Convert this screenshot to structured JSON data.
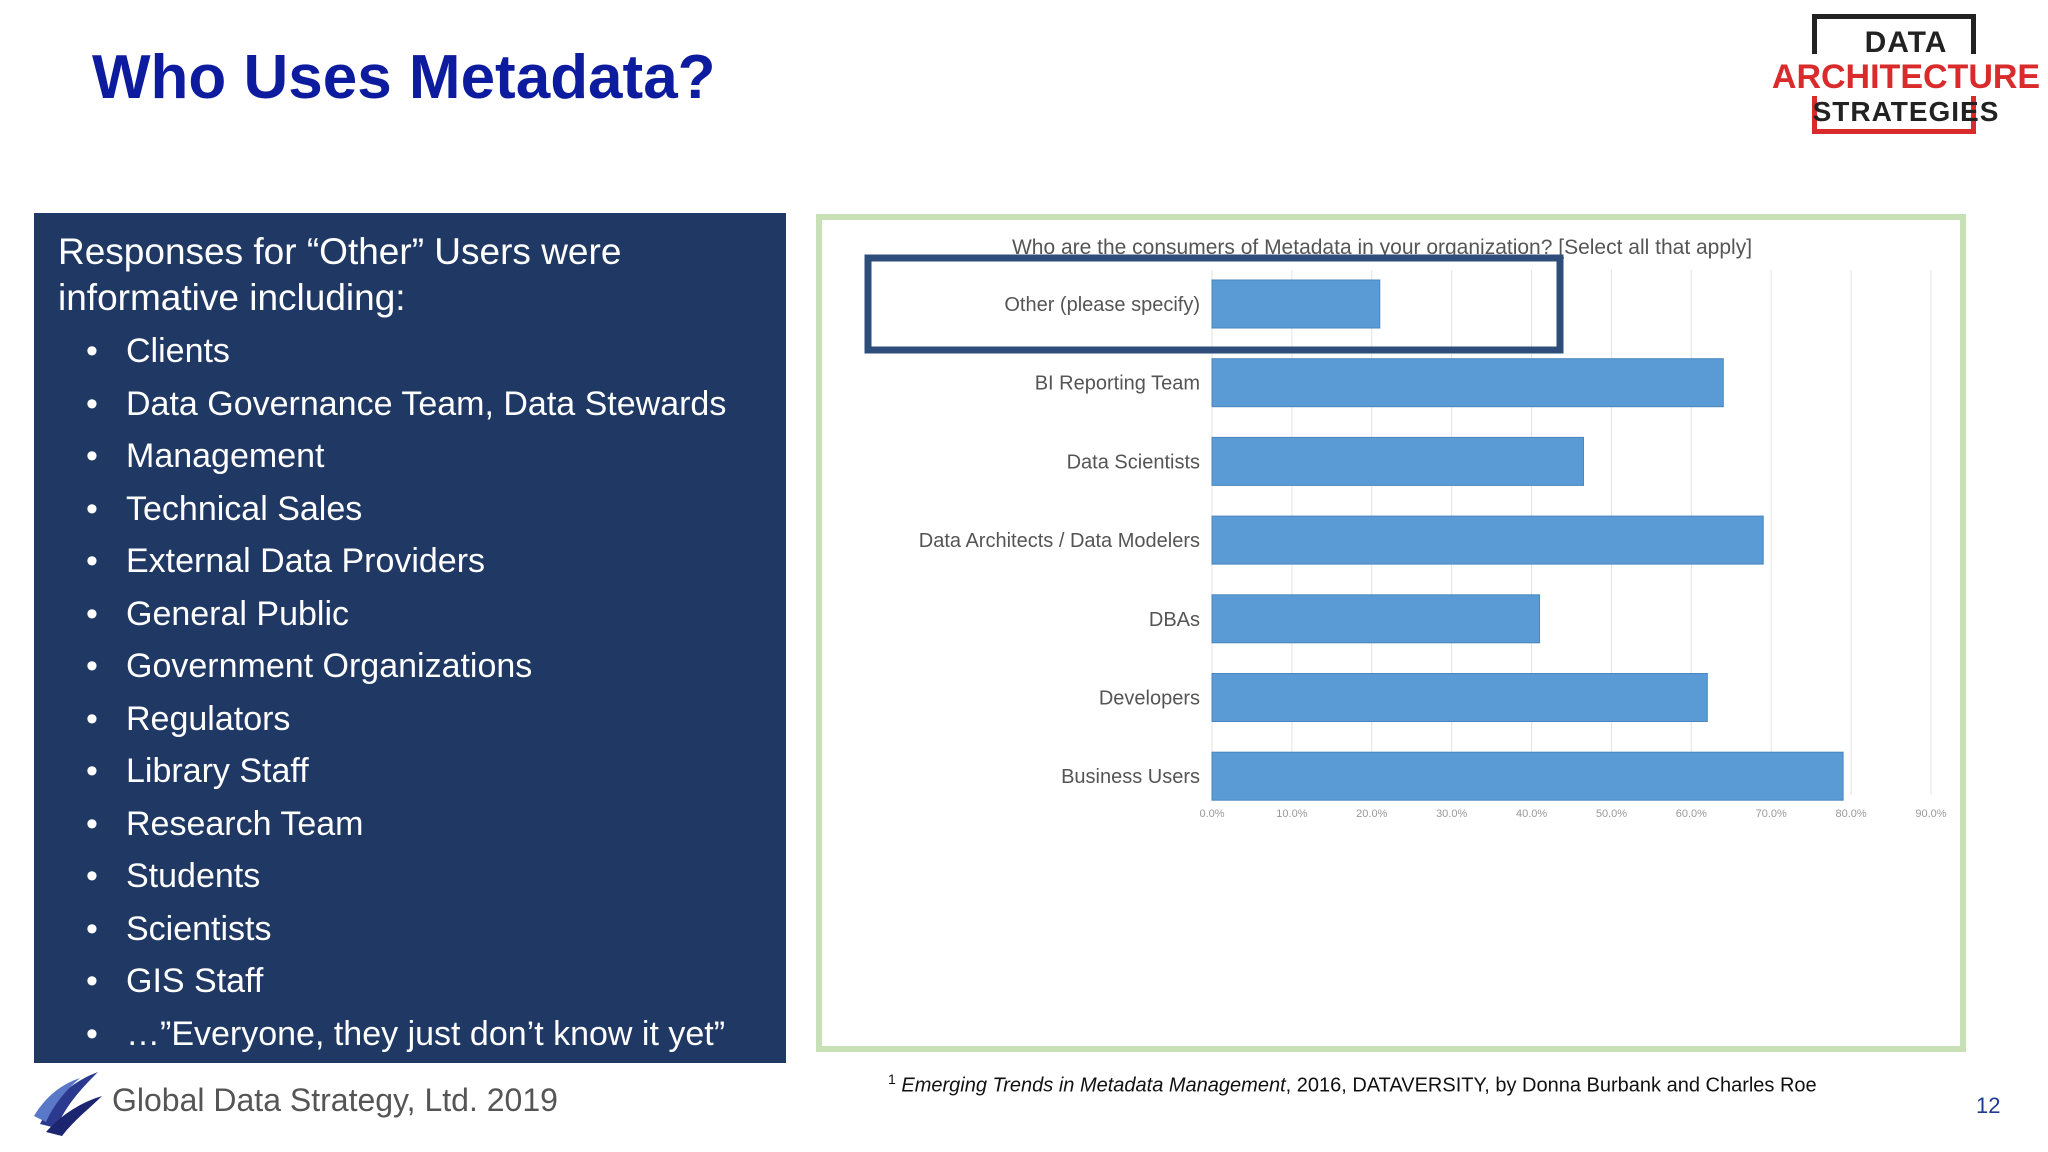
{
  "title": "Who Uses Metadata?",
  "logo": {
    "line1": "DATA",
    "line2": "ARCHITECTURE",
    "line3": "STRATEGIES"
  },
  "panel": {
    "intro": "Responses for “Other” Users were informative including:",
    "bullet_glyph": "•",
    "items": [
      "Clients",
      "Data Governance Team, Data Stewards",
      "Management",
      "Technical Sales",
      "External Data Providers",
      "General Public",
      "Government Organizations",
      "Regulators",
      "Library Staff",
      "Research Team",
      "Students",
      "Scientists",
      "GIS Staff",
      "…”Everyone, they just don’t know it yet”"
    ]
  },
  "chart_data": {
    "type": "bar",
    "orientation": "horizontal",
    "title": "Who are the consumers of Metadata in your organization? [Select all that apply]",
    "categories": [
      "Other (please specify)",
      "BI Reporting Team",
      "Data Scientists",
      "Data Architects / Data Modelers",
      "DBAs",
      "Developers",
      "Business Users"
    ],
    "values": [
      21,
      64,
      46.5,
      69,
      41,
      62,
      79
    ],
    "xticks": [
      "0.0%",
      "10.0%",
      "20.0%",
      "30.0%",
      "40.0%",
      "50.0%",
      "60.0%",
      "70.0%",
      "80.0%",
      "90.0%"
    ],
    "xlim": [
      0,
      90
    ],
    "highlighted_category": "Other (please specify)",
    "bar_color": "#5b9bd5",
    "highlight_color": "#2e4d7b",
    "grid": true
  },
  "footer": {
    "company": "Global Data Strategy, Ltd. 2019",
    "citation_sup": "1",
    "citation_title": "Emerging Trends in Metadata Management",
    "citation_rest": ", 2016, DATAVERSITY, by Donna Burbank and Charles Roe",
    "page_number": "12"
  }
}
